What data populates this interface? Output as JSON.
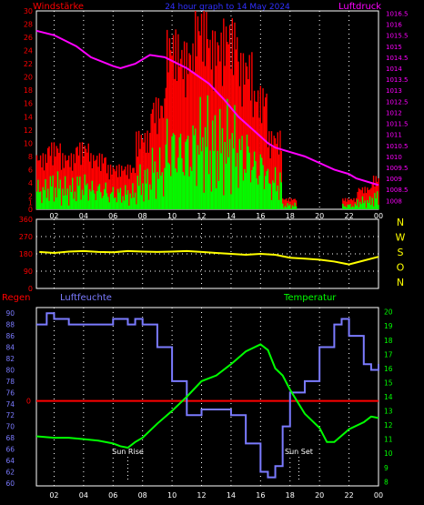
{
  "header": {
    "left_label": "Windstärke",
    "center_label": "24 hour graph to 14 May 2024",
    "right_label": "Luftdruck"
  },
  "wind_dir_labels": [
    "N",
    "W",
    "S",
    "O",
    "N"
  ],
  "lower_header": {
    "rain_label": "Regen",
    "humidity_label": "Luftfeuchte",
    "temperature_label": "Temperatur"
  },
  "x_ticks": [
    "02",
    "04",
    "06",
    "08",
    "10",
    "12",
    "14",
    "16",
    "18",
    "20",
    "22",
    "00"
  ],
  "colors": {
    "gust": "#ff0000",
    "wind": "#00ff00",
    "pressure": "#ff00ff",
    "direction": "#ffff00",
    "humidity": "#7b7bff",
    "temperature": "#00ff00",
    "rain": "#ff0000",
    "grid": "#ffffff",
    "left_axis": "#ff0000",
    "right_axis": "#ff00ff",
    "rain_axis": "#ff0000",
    "humidity_axis": "#7b7bff",
    "temperature_axis": "#00ff00"
  },
  "chart_data": [
    {
      "name": "wind",
      "type": "bar",
      "x_unit": "hour of day",
      "xlim": [
        0.8,
        24
      ],
      "left_axis": {
        "ticks": [
          "0",
          "1",
          "2",
          "4",
          "6",
          "8",
          "10",
          "12",
          "14",
          "16",
          "18",
          "20",
          "22",
          "24",
          "26",
          "28",
          "30"
        ],
        "ylim": [
          0,
          30
        ]
      },
      "right_axis": {
        "ticks": [
          "1008",
          "1008.5",
          "1009",
          "1009.5",
          "1010",
          "1010.5",
          "1011",
          "1011.5",
          "1012",
          "1012.5",
          "1013",
          "1013.5",
          "1014",
          "1014.5",
          "1015",
          "1015.5",
          "1016",
          "1016.5"
        ],
        "ylim": [
          1007.6,
          1016.6
        ]
      },
      "series": [
        {
          "name": "Windstärke",
          "style": "bar",
          "x": [
            1,
            2,
            3,
            4,
            5,
            6,
            7,
            8,
            9,
            10,
            11,
            12,
            13,
            14,
            15,
            16,
            17,
            18,
            19,
            20,
            21,
            22,
            23,
            24
          ],
          "y": [
            5,
            6,
            5,
            6,
            5,
            4,
            4,
            7,
            10,
            16,
            15,
            18,
            16,
            17,
            14,
            11,
            7,
            1,
            0,
            0,
            0,
            1,
            2,
            3
          ]
        },
        {
          "name": "Luftdruck",
          "style": "line",
          "axis": "right",
          "x": [
            0.8,
            2,
            3.5,
            4.5,
            6,
            6.5,
            7.5,
            8.5,
            9.5,
            11,
            12.5,
            13.5,
            14.5,
            15.5,
            16.5,
            17,
            18,
            19,
            20,
            21,
            22,
            22.5,
            24
          ],
          "y": [
            1015.7,
            1015.5,
            1015,
            1014.5,
            1014.1,
            1014.0,
            1014.2,
            1014.6,
            1014.5,
            1014.0,
            1013.3,
            1012.6,
            1011.8,
            1011.2,
            1010.6,
            1010.4,
            1010.2,
            1010.0,
            1009.7,
            1009.4,
            1009.2,
            1009.0,
            1008.7
          ]
        }
      ]
    },
    {
      "name": "wind-direction",
      "type": "line",
      "x_unit": "hour of day",
      "xlim": [
        0.8,
        24
      ],
      "left_axis": {
        "ticks": [
          "0",
          "90",
          "180",
          "270",
          "360"
        ],
        "ylim": [
          0,
          360
        ]
      },
      "series": [
        {
          "name": "direction",
          "x": [
            1,
            2,
            3,
            4,
            5,
            6,
            7,
            8,
            9,
            10,
            11,
            12,
            13,
            14,
            15,
            16,
            17,
            18,
            19,
            20,
            21,
            22,
            23,
            24
          ],
          "y": [
            190,
            185,
            192,
            195,
            190,
            188,
            195,
            192,
            190,
            192,
            195,
            190,
            185,
            180,
            175,
            180,
            175,
            160,
            155,
            150,
            140,
            125,
            145,
            165
          ]
        }
      ]
    },
    {
      "name": "temp-humidity",
      "type": "line",
      "x_unit": "hour of day",
      "xlim": [
        0.8,
        24
      ],
      "rain_axis": {
        "ticks": [
          "0"
        ],
        "value": 0
      },
      "humidity_axis": {
        "ticks": [
          "60",
          "62",
          "64",
          "66",
          "68",
          "70",
          "72",
          "74",
          "76",
          "78",
          "80",
          "82",
          "84",
          "86",
          "88",
          "90"
        ],
        "ylim": [
          59.5,
          91
        ]
      },
      "temperature_axis": {
        "ticks": [
          "8",
          "9",
          "10",
          "11",
          "12",
          "13",
          "14",
          "15",
          "16",
          "17",
          "18",
          "19",
          "20"
        ],
        "ylim": [
          7.7,
          20.3
        ]
      },
      "annotations": [
        {
          "label": "Sun Rise",
          "x": 7.0
        },
        {
          "label": "Sun Set",
          "x": 18.6
        }
      ],
      "series": [
        {
          "name": "Luftfeuchte",
          "axis": "humidity",
          "x": [
            0.8,
            1.5,
            2,
            3,
            4,
            5,
            6,
            7,
            7.5,
            8,
            9,
            10,
            11,
            12,
            13,
            14,
            15,
            16,
            16.5,
            17,
            17.5,
            18,
            19,
            20,
            21,
            21.5,
            22,
            23,
            23.5,
            24
          ],
          "y": [
            88,
            90,
            89,
            88,
            88,
            88,
            89,
            88,
            89,
            88,
            84,
            78,
            72,
            73,
            73,
            72,
            67,
            62,
            61,
            63,
            70,
            76,
            78,
            84,
            88,
            89,
            86,
            81,
            80,
            81
          ]
        },
        {
          "name": "Temperatur",
          "axis": "temperature",
          "x": [
            0.8,
            2,
            3,
            4,
            5,
            6,
            6.5,
            7,
            7.5,
            8,
            9,
            10,
            11,
            12,
            13,
            14,
            15,
            16,
            16.5,
            17,
            17.5,
            18,
            19,
            20,
            20.5,
            21,
            22,
            23,
            23.5,
            24
          ],
          "y": [
            11.2,
            11.1,
            11.1,
            11.0,
            10.9,
            10.7,
            10.5,
            10.4,
            10.8,
            11.1,
            12.1,
            13.0,
            14.0,
            15.1,
            15.5,
            16.3,
            17.2,
            17.7,
            17.3,
            16.0,
            15.5,
            14.5,
            12.8,
            11.8,
            10.8,
            10.8,
            11.7,
            12.2,
            12.6,
            12.5
          ]
        },
        {
          "name": "Regen",
          "axis": "rain",
          "x": [
            0.8,
            24
          ],
          "y": [
            0,
            0
          ]
        }
      ]
    }
  ]
}
